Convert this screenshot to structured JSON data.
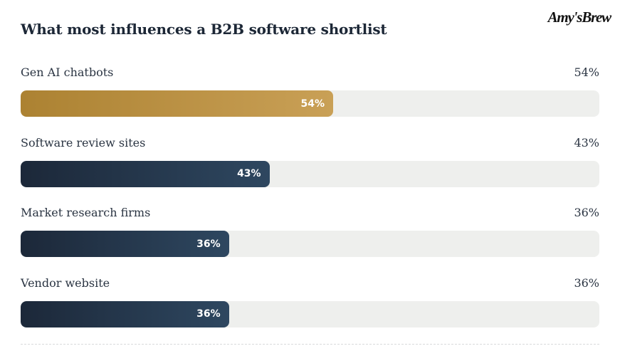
{
  "brand": {
    "logo_text": "Amy'sBrew"
  },
  "chart_data": {
    "type": "bar",
    "orientation": "horizontal",
    "title": "What most influences a B2B software shortlist",
    "categories": [
      "Gen AI chatbots",
      "Software review sites",
      "Market research firms",
      "Vendor website"
    ],
    "values": [
      54,
      43,
      36,
      36
    ],
    "value_labels": [
      "54%",
      "43%",
      "36%",
      "36%"
    ],
    "unit": "%",
    "xlim": [
      0,
      100
    ],
    "grid": false,
    "legend": "none",
    "colors": {
      "highlight": "#b58a3c",
      "default": "#233349",
      "track": "#eeefed"
    },
    "highlight_index": 0
  }
}
